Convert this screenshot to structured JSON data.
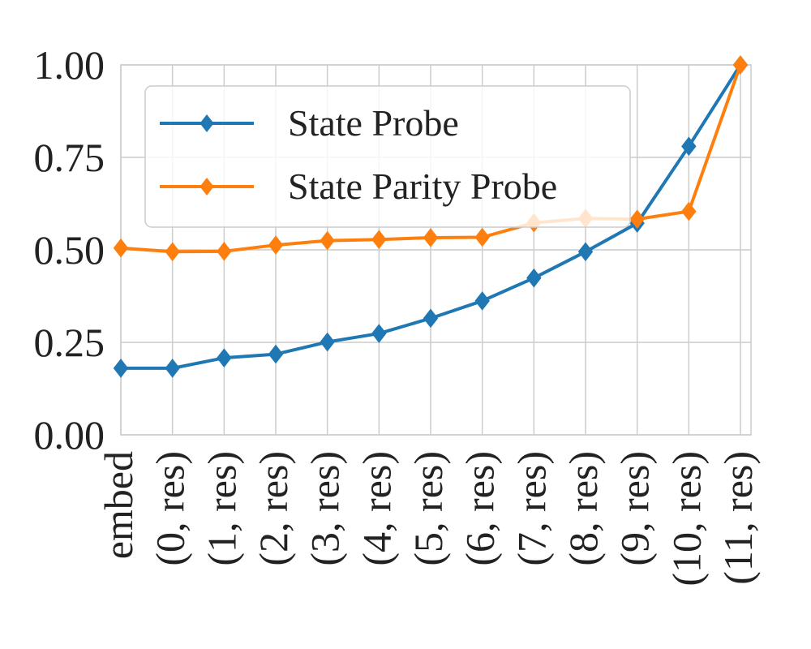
{
  "chart_data": {
    "type": "line",
    "categories": [
      "embed",
      "(0, res)",
      "(1, res)",
      "(2, res)",
      "(3, res)",
      "(4, res)",
      "(5, res)",
      "(6, res)",
      "(7, res)",
      "(8, res)",
      "(9, res)",
      "(10, res)",
      "(11, res)"
    ],
    "series": [
      {
        "name": "State Probe",
        "color": "#1f77b4",
        "marker": "diamond",
        "values": [
          0.18,
          0.18,
          0.208,
          0.218,
          0.251,
          0.274,
          0.315,
          0.362,
          0.424,
          0.495,
          0.572,
          0.78,
          1.0
        ]
      },
      {
        "name": "State Parity Probe",
        "color": "#ff7f0e",
        "marker": "diamond",
        "values": [
          0.505,
          0.495,
          0.496,
          0.513,
          0.525,
          0.528,
          0.533,
          0.534,
          0.573,
          0.585,
          0.583,
          0.604,
          1.0
        ]
      }
    ],
    "title": "",
    "xlabel": "",
    "ylabel": "",
    "ylim": [
      0,
      1.0
    ],
    "yticks": [
      "0.00",
      "0.25",
      "0.50",
      "0.75",
      "1.00"
    ],
    "ytick_values": [
      0,
      0.25,
      0.5,
      0.75,
      1.0
    ],
    "grid": true,
    "legend_position": "upper-left",
    "legend_entries": [
      "State Probe",
      "State Parity Probe"
    ]
  }
}
